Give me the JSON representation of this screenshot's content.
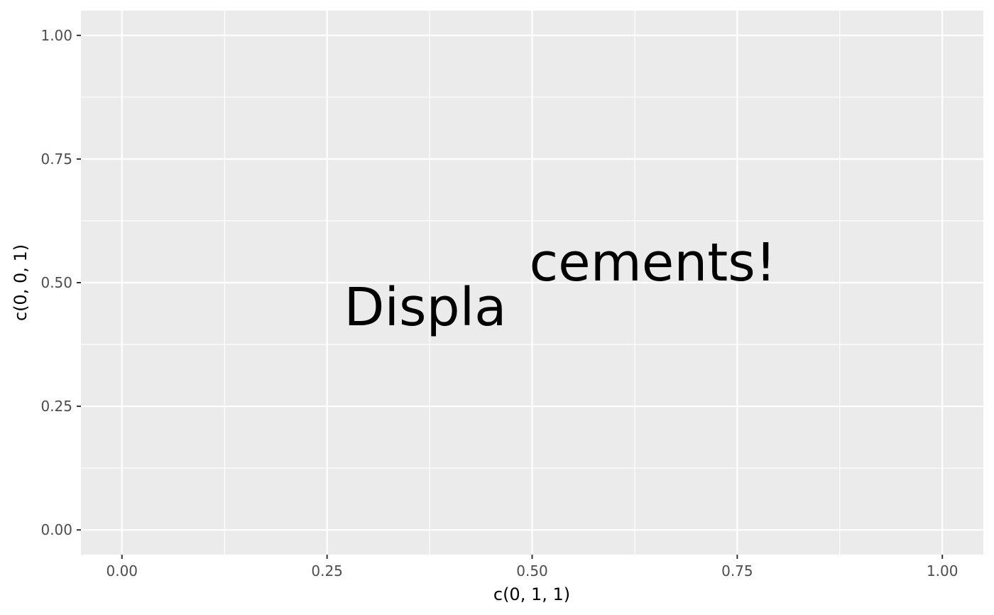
{
  "chart_data": {
    "type": "scatter",
    "title": "",
    "xlabel": "c(0, 1, 1)",
    "ylabel": "c(0, 0, 1)",
    "xlim": [
      -0.05,
      1.05
    ],
    "ylim": [
      -0.05,
      1.05
    ],
    "x_ticks": [
      0,
      0.25,
      0.5,
      0.75,
      1
    ],
    "x_tick_labels": [
      "0.00",
      "0.25",
      "0.50",
      "0.75",
      "1.00"
    ],
    "y_ticks": [
      0,
      0.25,
      0.5,
      0.75,
      1
    ],
    "y_tick_labels": [
      "0.00",
      "0.25",
      "0.50",
      "0.75",
      "1.00"
    ],
    "x_minor": [
      0.125,
      0.375,
      0.625,
      0.875
    ],
    "y_minor": [
      0.125,
      0.375,
      0.625,
      0.875
    ],
    "grid": true,
    "legend": "none",
    "panel_background": "#ebebeb",
    "grid_color": "#ffffff",
    "annotation": {
      "text": "Displacements!",
      "part1": "Displa",
      "part2": "cements!",
      "x": 0.5,
      "y": 0.5,
      "angle_deg": -35,
      "color": "#000000"
    }
  }
}
